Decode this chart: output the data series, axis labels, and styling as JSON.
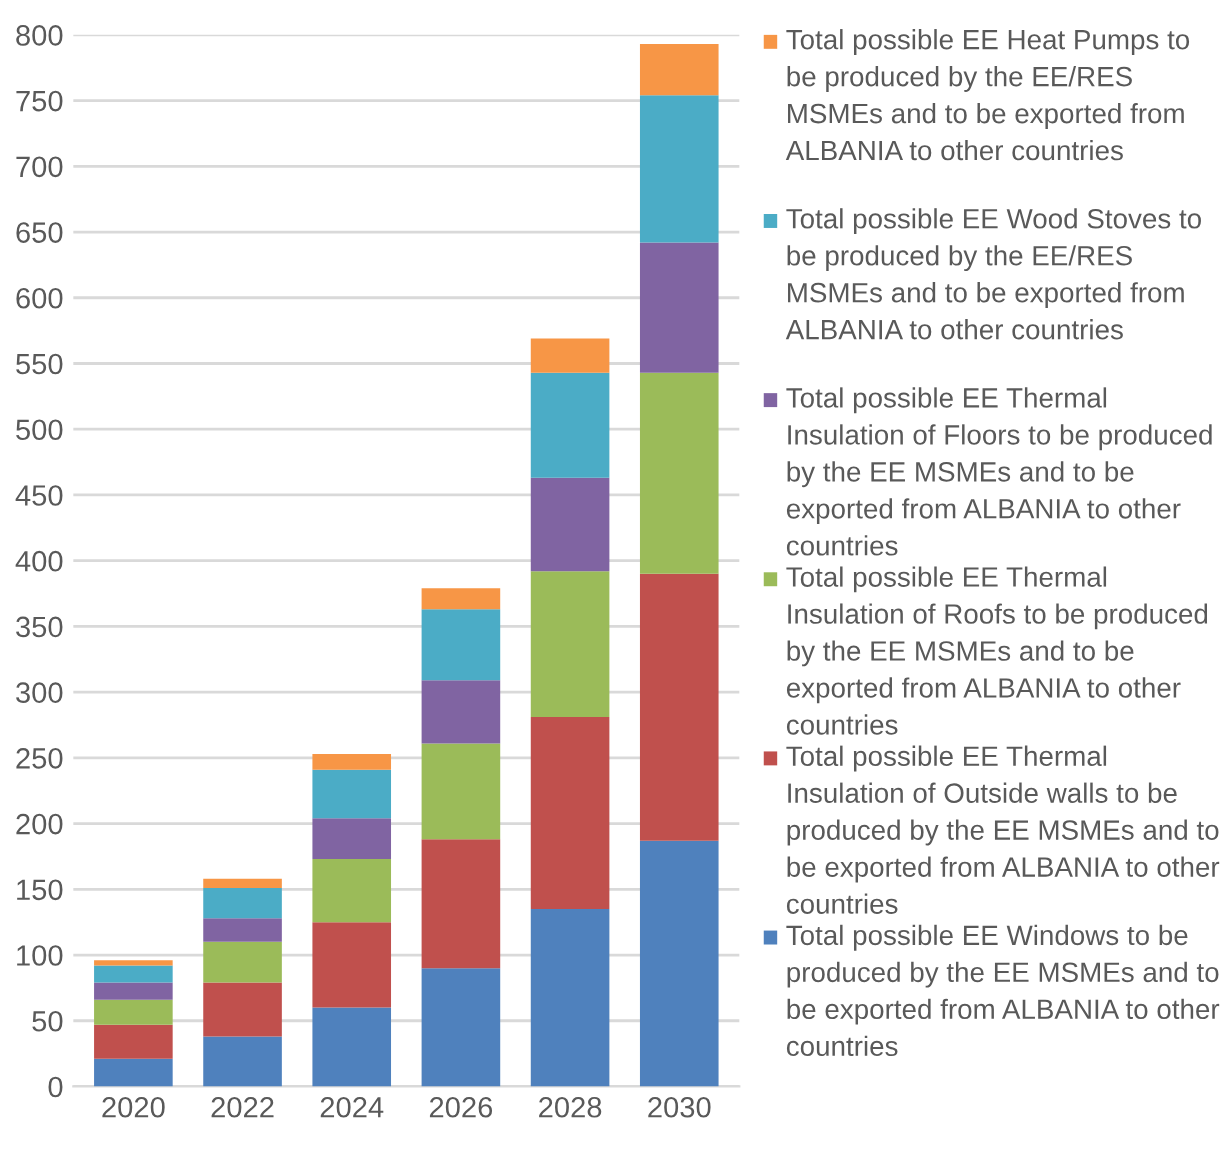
{
  "chart_data": {
    "type": "bar",
    "stacked": true,
    "categories": [
      "2020",
      "2022",
      "2024",
      "2026",
      "2028",
      "2030"
    ],
    "series": [
      {
        "name": "Total possible EE Windows to be produced by the EE MSMEs and to be exported from ALBANIA to other countries",
        "color": "#4f81bd",
        "values": [
          21,
          38,
          60,
          90,
          135,
          187
        ]
      },
      {
        "name": "Total possible EE Thermal Insulation of Outside walls to be produced by the EE MSMEs and to be exported from ALBANIA to other countries",
        "color": "#c0504d",
        "values": [
          26,
          41,
          65,
          98,
          146,
          203
        ]
      },
      {
        "name": "Total possible EE Thermal Insulation of Roofs to be produced by the EE MSMEs and to be exported from ALBANIA to other countries",
        "color": "#9bbb59",
        "values": [
          19,
          31,
          48,
          73,
          111,
          153
        ]
      },
      {
        "name": "Total possible EE Thermal Insulation of Floors to be produced by the EE MSMEs and to be exported from ALBANIA to other countries",
        "color": "#8064a2",
        "values": [
          13,
          18,
          31,
          48,
          71,
          99
        ]
      },
      {
        "name": "Total possible EE Wood Stoves to be produced by the EE/RES MSMEs and to be exported from ALBANIA to other countries",
        "color": "#4bacc6",
        "values": [
          13,
          23,
          37,
          54,
          80,
          112
        ]
      },
      {
        "name": "Total possible EE Heat Pumps to be produced by the EE/RES MSMEs and to be exported from ALBANIA to other countries",
        "color": "#f79646",
        "values": [
          4,
          7,
          12,
          16,
          26,
          39
        ]
      }
    ],
    "ylim": [
      0,
      800
    ],
    "yticks": [
      0,
      50,
      100,
      150,
      200,
      250,
      300,
      350,
      400,
      450,
      500,
      550,
      600,
      650,
      700,
      750,
      800
    ],
    "grid": "y",
    "legend": "right"
  }
}
